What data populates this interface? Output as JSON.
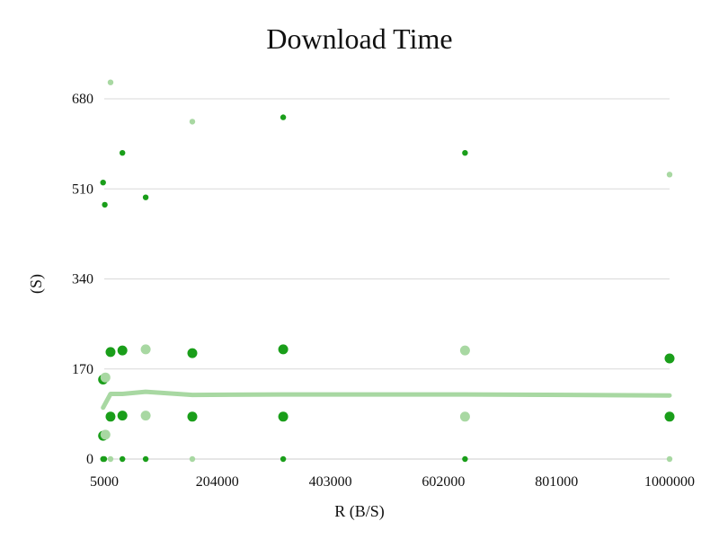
{
  "chart_data": {
    "type": "scatter",
    "title": "Download Time",
    "xlabel": "R (B/S)",
    "ylabel": "(S)",
    "xlim": [
      5000,
      1000000
    ],
    "ylim": [
      0,
      680
    ],
    "x_ticks": [
      "5000",
      "204000",
      "403000",
      "602000",
      "801000",
      "1000000"
    ],
    "y_ticks": [
      "0",
      "170",
      "340",
      "510",
      "680"
    ],
    "grid": true,
    "legend": "none",
    "colors": {
      "dark": "#1a9e1a",
      "light": "#a8d8a2",
      "trend": "#a8d8a2"
    },
    "series": [
      {
        "style": "dark",
        "size": "small",
        "points": [
          [
            3000,
            0
          ],
          [
            5000,
            0
          ],
          [
            3000,
            522
          ],
          [
            6000,
            480
          ],
          [
            37000,
            578
          ],
          [
            37000,
            0
          ],
          [
            78000,
            494
          ],
          [
            78000,
            0
          ],
          [
            320000,
            645
          ],
          [
            320000,
            0
          ],
          [
            640000,
            578
          ],
          [
            640000,
            0
          ]
        ]
      },
      {
        "style": "light",
        "size": "small",
        "points": [
          [
            16000,
            711
          ],
          [
            16000,
            0
          ],
          [
            160000,
            637
          ],
          [
            160000,
            0
          ],
          [
            1000000,
            537
          ],
          [
            1000000,
            0
          ]
        ]
      },
      {
        "style": "dark",
        "size": "large",
        "points": [
          [
            3000,
            150
          ],
          [
            3000,
            44
          ],
          [
            16000,
            202
          ],
          [
            16000,
            80
          ],
          [
            37000,
            205
          ],
          [
            37000,
            82
          ],
          [
            160000,
            200
          ],
          [
            160000,
            80
          ],
          [
            320000,
            207
          ],
          [
            320000,
            80
          ],
          [
            1000000,
            190
          ],
          [
            1000000,
            80
          ]
        ]
      },
      {
        "style": "light",
        "size": "large",
        "points": [
          [
            7000,
            154
          ],
          [
            7000,
            46
          ],
          [
            78000,
            207
          ],
          [
            78000,
            82
          ],
          [
            640000,
            205
          ],
          [
            640000,
            80
          ]
        ]
      }
    ],
    "trend": {
      "x": [
        3000,
        16000,
        37000,
        78000,
        160000,
        320000,
        640000,
        1000000
      ],
      "y": [
        97,
        123,
        123,
        127,
        121,
        122,
        122,
        120
      ]
    }
  }
}
